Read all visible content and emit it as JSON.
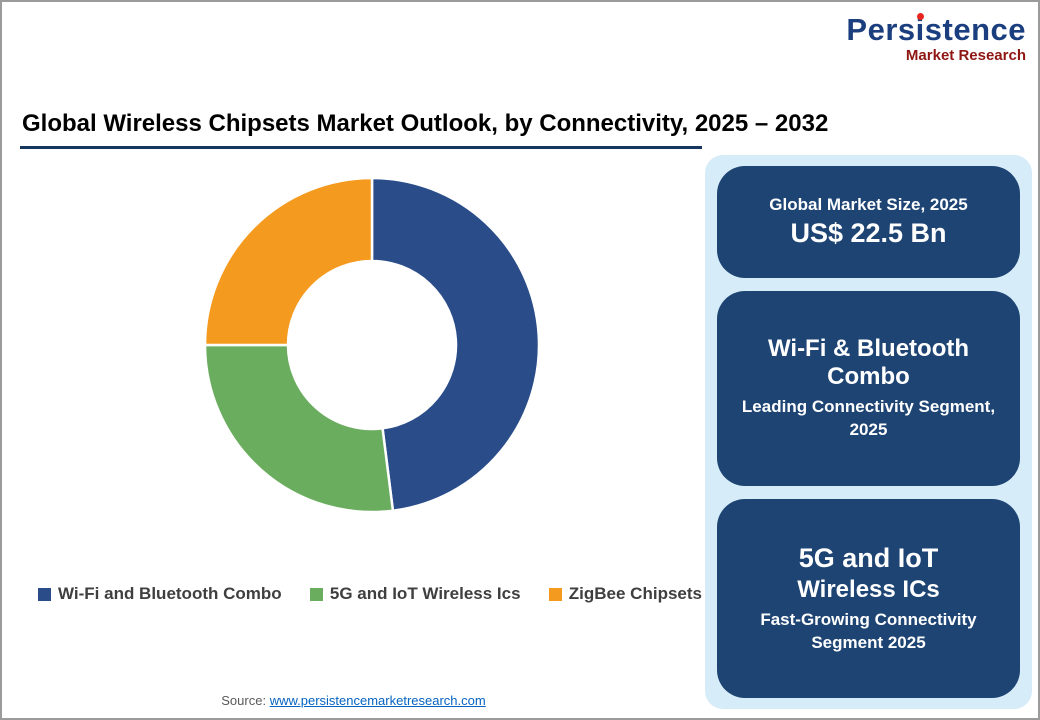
{
  "logo": {
    "part1": "Pers",
    "dotted_letter": "i",
    "part2": "stence",
    "subtitle": "Market Research"
  },
  "header": {
    "title": "Global Wireless Chipsets Market Outlook, by Connectivity, 2025 – 2032"
  },
  "chart_data": {
    "type": "pie",
    "subtype": "donut",
    "title": "Global Wireless Chipsets Market Outlook, by Connectivity, 2025 – 2032",
    "start_angle_deg": 0,
    "direction": "clockwise",
    "legend_position": "bottom",
    "segments": [
      {
        "label": "Wi-Fi and Bluetooth Combo",
        "value_pct": 48,
        "color": "#2a4d8a"
      },
      {
        "label": "5G and IoT Wireless Ics",
        "value_pct": 27,
        "color": "#6bad5f"
      },
      {
        "label": "ZigBee Chipsets",
        "value_pct": 25,
        "color": "#f49b1f"
      }
    ]
  },
  "side_panel": {
    "background_color": "#d6ecf8",
    "box_color": "#1e4474",
    "boxes": [
      {
        "line1": "Global Market Size, 2025",
        "line2": "US$ 22.5 Bn"
      },
      {
        "line1": "Wi-Fi & Bluetooth Combo",
        "line2": "Leading Connectivity Segment, 2025"
      },
      {
        "line1": "5G and IoT",
        "line2": "Wireless ICs",
        "line3": "Fast-Growing Connectivity Segment 2025"
      }
    ]
  },
  "footer": {
    "source_prefix": "Source: ",
    "source_link": "www.persistencemarketresearch.com"
  }
}
